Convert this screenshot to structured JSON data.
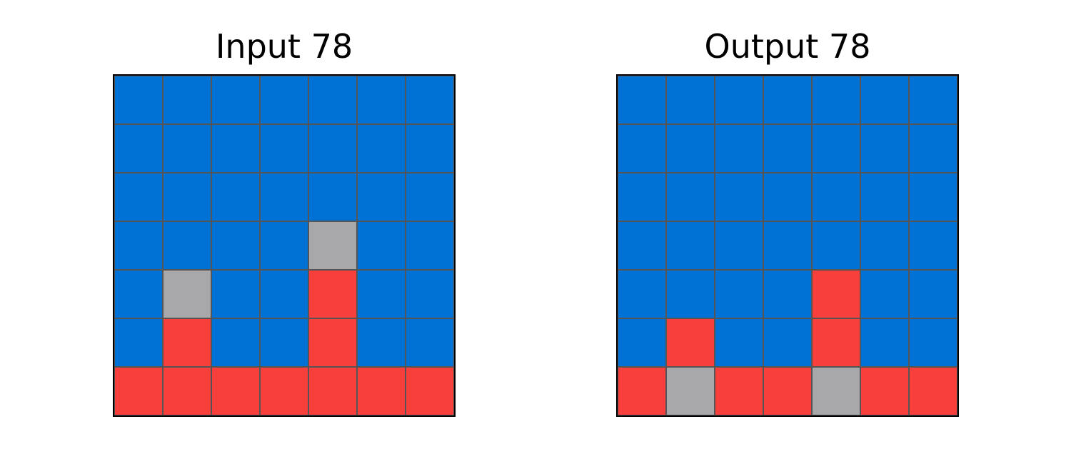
{
  "palette": {
    "0": "#0072d6",
    "1": "#f93f3b",
    "2": "#a8a7aa"
  },
  "panels": [
    {
      "title": "Input 78",
      "grid": [
        [
          0,
          0,
          0,
          0,
          0,
          0,
          0
        ],
        [
          0,
          0,
          0,
          0,
          0,
          0,
          0
        ],
        [
          0,
          0,
          0,
          0,
          0,
          0,
          0
        ],
        [
          0,
          0,
          0,
          0,
          2,
          0,
          0
        ],
        [
          0,
          2,
          0,
          0,
          1,
          0,
          0
        ],
        [
          0,
          1,
          0,
          0,
          1,
          0,
          0
        ],
        [
          1,
          1,
          1,
          1,
          1,
          1,
          1
        ]
      ]
    },
    {
      "title": "Output 78",
      "grid": [
        [
          0,
          0,
          0,
          0,
          0,
          0,
          0
        ],
        [
          0,
          0,
          0,
          0,
          0,
          0,
          0
        ],
        [
          0,
          0,
          0,
          0,
          0,
          0,
          0
        ],
        [
          0,
          0,
          0,
          0,
          0,
          0,
          0
        ],
        [
          0,
          0,
          0,
          0,
          1,
          0,
          0
        ],
        [
          0,
          1,
          0,
          0,
          1,
          0,
          0
        ],
        [
          1,
          2,
          1,
          1,
          2,
          1,
          1
        ]
      ]
    }
  ]
}
